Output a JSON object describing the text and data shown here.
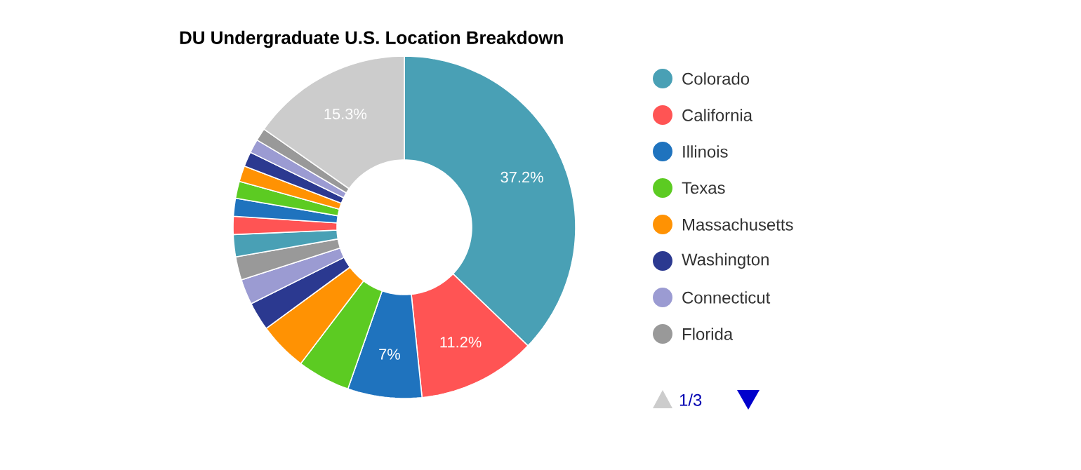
{
  "chart_data": {
    "type": "donut",
    "title": "DU Undergraduate U.S. Location Breakdown",
    "categories": [
      "Colorado",
      "California",
      "Illinois",
      "Texas",
      "Massachusetts",
      "Washington",
      "Connecticut",
      "Florida",
      null,
      null,
      null,
      null,
      null,
      null,
      null,
      null,
      null
    ],
    "values": [
      37.2,
      11.2,
      7,
      5.0,
      4.6,
      2.7,
      2.4,
      2.2,
      2.1,
      1.7,
      1.7,
      1.6,
      1.5,
      1.4,
      1.3,
      1.2,
      15.3
    ],
    "colors": [
      "#49a0b5",
      "#ff5454",
      "#1f73be",
      "#5ccb22",
      "#ff9203",
      "#2b3990",
      "#9b9bd2",
      "#999999",
      "#49a0b5",
      "#ff5454",
      "#1f73be",
      "#5ccb22",
      "#ff9203",
      "#2b3990",
      "#9b9bd2",
      "#999999",
      "#cccccc"
    ],
    "value_labels": [
      "37.2%",
      "11.2%",
      "7%",
      null,
      null,
      null,
      null,
      null,
      null,
      null,
      null,
      null,
      null,
      null,
      null,
      null,
      "15.3%"
    ],
    "legend": "right",
    "annotations": [
      "1/3"
    ]
  }
}
